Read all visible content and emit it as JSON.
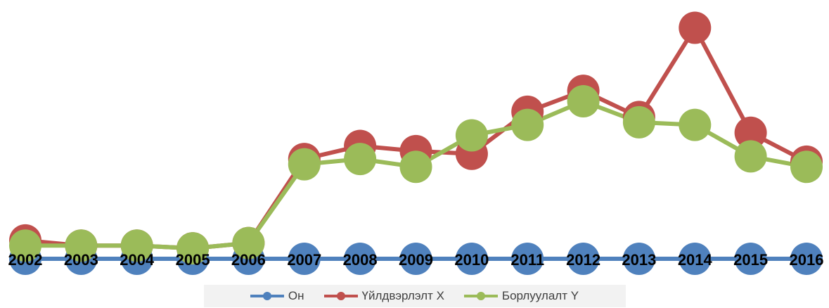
{
  "chart_data": {
    "type": "line",
    "categories": [
      "2002",
      "2003",
      "2004",
      "2005",
      "2006",
      "2007",
      "2008",
      "2009",
      "2010",
      "2011",
      "2012",
      "2013",
      "2014",
      "2015",
      "2016"
    ],
    "series": [
      {
        "name": "Он",
        "color": "#4f81bd",
        "values": [
          0,
          0,
          0,
          0,
          0,
          0,
          0,
          0,
          0,
          0,
          0,
          0,
          0,
          0,
          0
        ]
      },
      {
        "name": "Үйлдвэрлэлт X",
        "color": "#c0504d",
        "values": [
          7,
          5,
          5,
          4,
          6,
          38,
          43,
          41,
          40,
          56,
          64,
          54,
          88,
          48,
          37
        ]
      },
      {
        "name": "Борлуулалт Y",
        "color": "#9bbb59",
        "values": [
          5,
          5,
          5,
          4,
          6,
          36,
          38,
          35,
          47,
          51,
          60,
          52,
          51,
          39,
          35
        ]
      }
    ],
    "ylim": [
      0,
      90
    ],
    "grid": false,
    "legend_position": "bottom",
    "tick_labels_on_axis": true
  }
}
